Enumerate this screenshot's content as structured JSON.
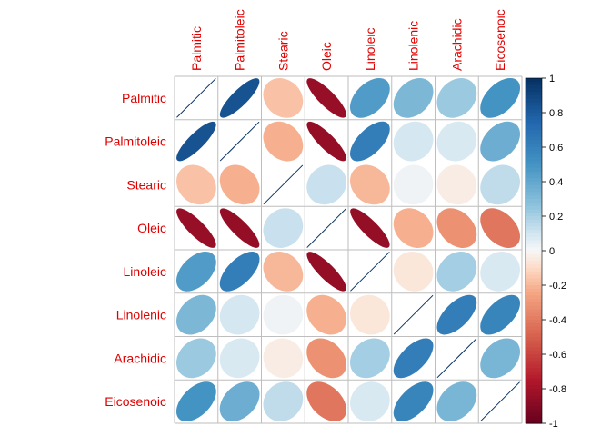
{
  "chart_data": {
    "type": "heatmap",
    "variables": [
      "Palmitic",
      "Palmitoleic",
      "Stearic",
      "Oleic",
      "Linoleic",
      "Linolenic",
      "Arachidic",
      "Eicosenoic"
    ],
    "matrix": [
      [
        1.0,
        0.84,
        -0.17,
        -0.84,
        0.46,
        0.32,
        0.23,
        0.5
      ],
      [
        0.84,
        1.0,
        -0.22,
        -0.85,
        0.62,
        0.09,
        0.08,
        0.37
      ],
      [
        -0.17,
        -0.22,
        1.0,
        0.12,
        -0.2,
        0.02,
        -0.04,
        0.14
      ],
      [
        -0.84,
        -0.85,
        0.12,
        1.0,
        -0.85,
        -0.22,
        -0.32,
        -0.42
      ],
      [
        0.46,
        0.62,
        -0.2,
        -0.85,
        1.0,
        -0.06,
        0.21,
        0.08
      ],
      [
        0.32,
        0.09,
        0.02,
        -0.22,
        -0.06,
        1.0,
        0.62,
        0.58
      ],
      [
        0.23,
        0.08,
        -0.04,
        -0.32,
        0.21,
        0.62,
        1.0,
        0.33
      ],
      [
        0.5,
        0.37,
        0.14,
        -0.42,
        0.08,
        0.58,
        0.33,
        1.0
      ]
    ],
    "colorbar": {
      "ticks": [
        "1",
        "0.8",
        "0.6",
        "0.4",
        "0.2",
        "0",
        "-0.2",
        "-0.4",
        "-0.6",
        "-0.8",
        "-1"
      ],
      "range": [
        -1,
        1
      ]
    },
    "colors": {
      "label": "#e00000",
      "grid": "#bebebe",
      "diagonal_line": "#053061"
    }
  }
}
